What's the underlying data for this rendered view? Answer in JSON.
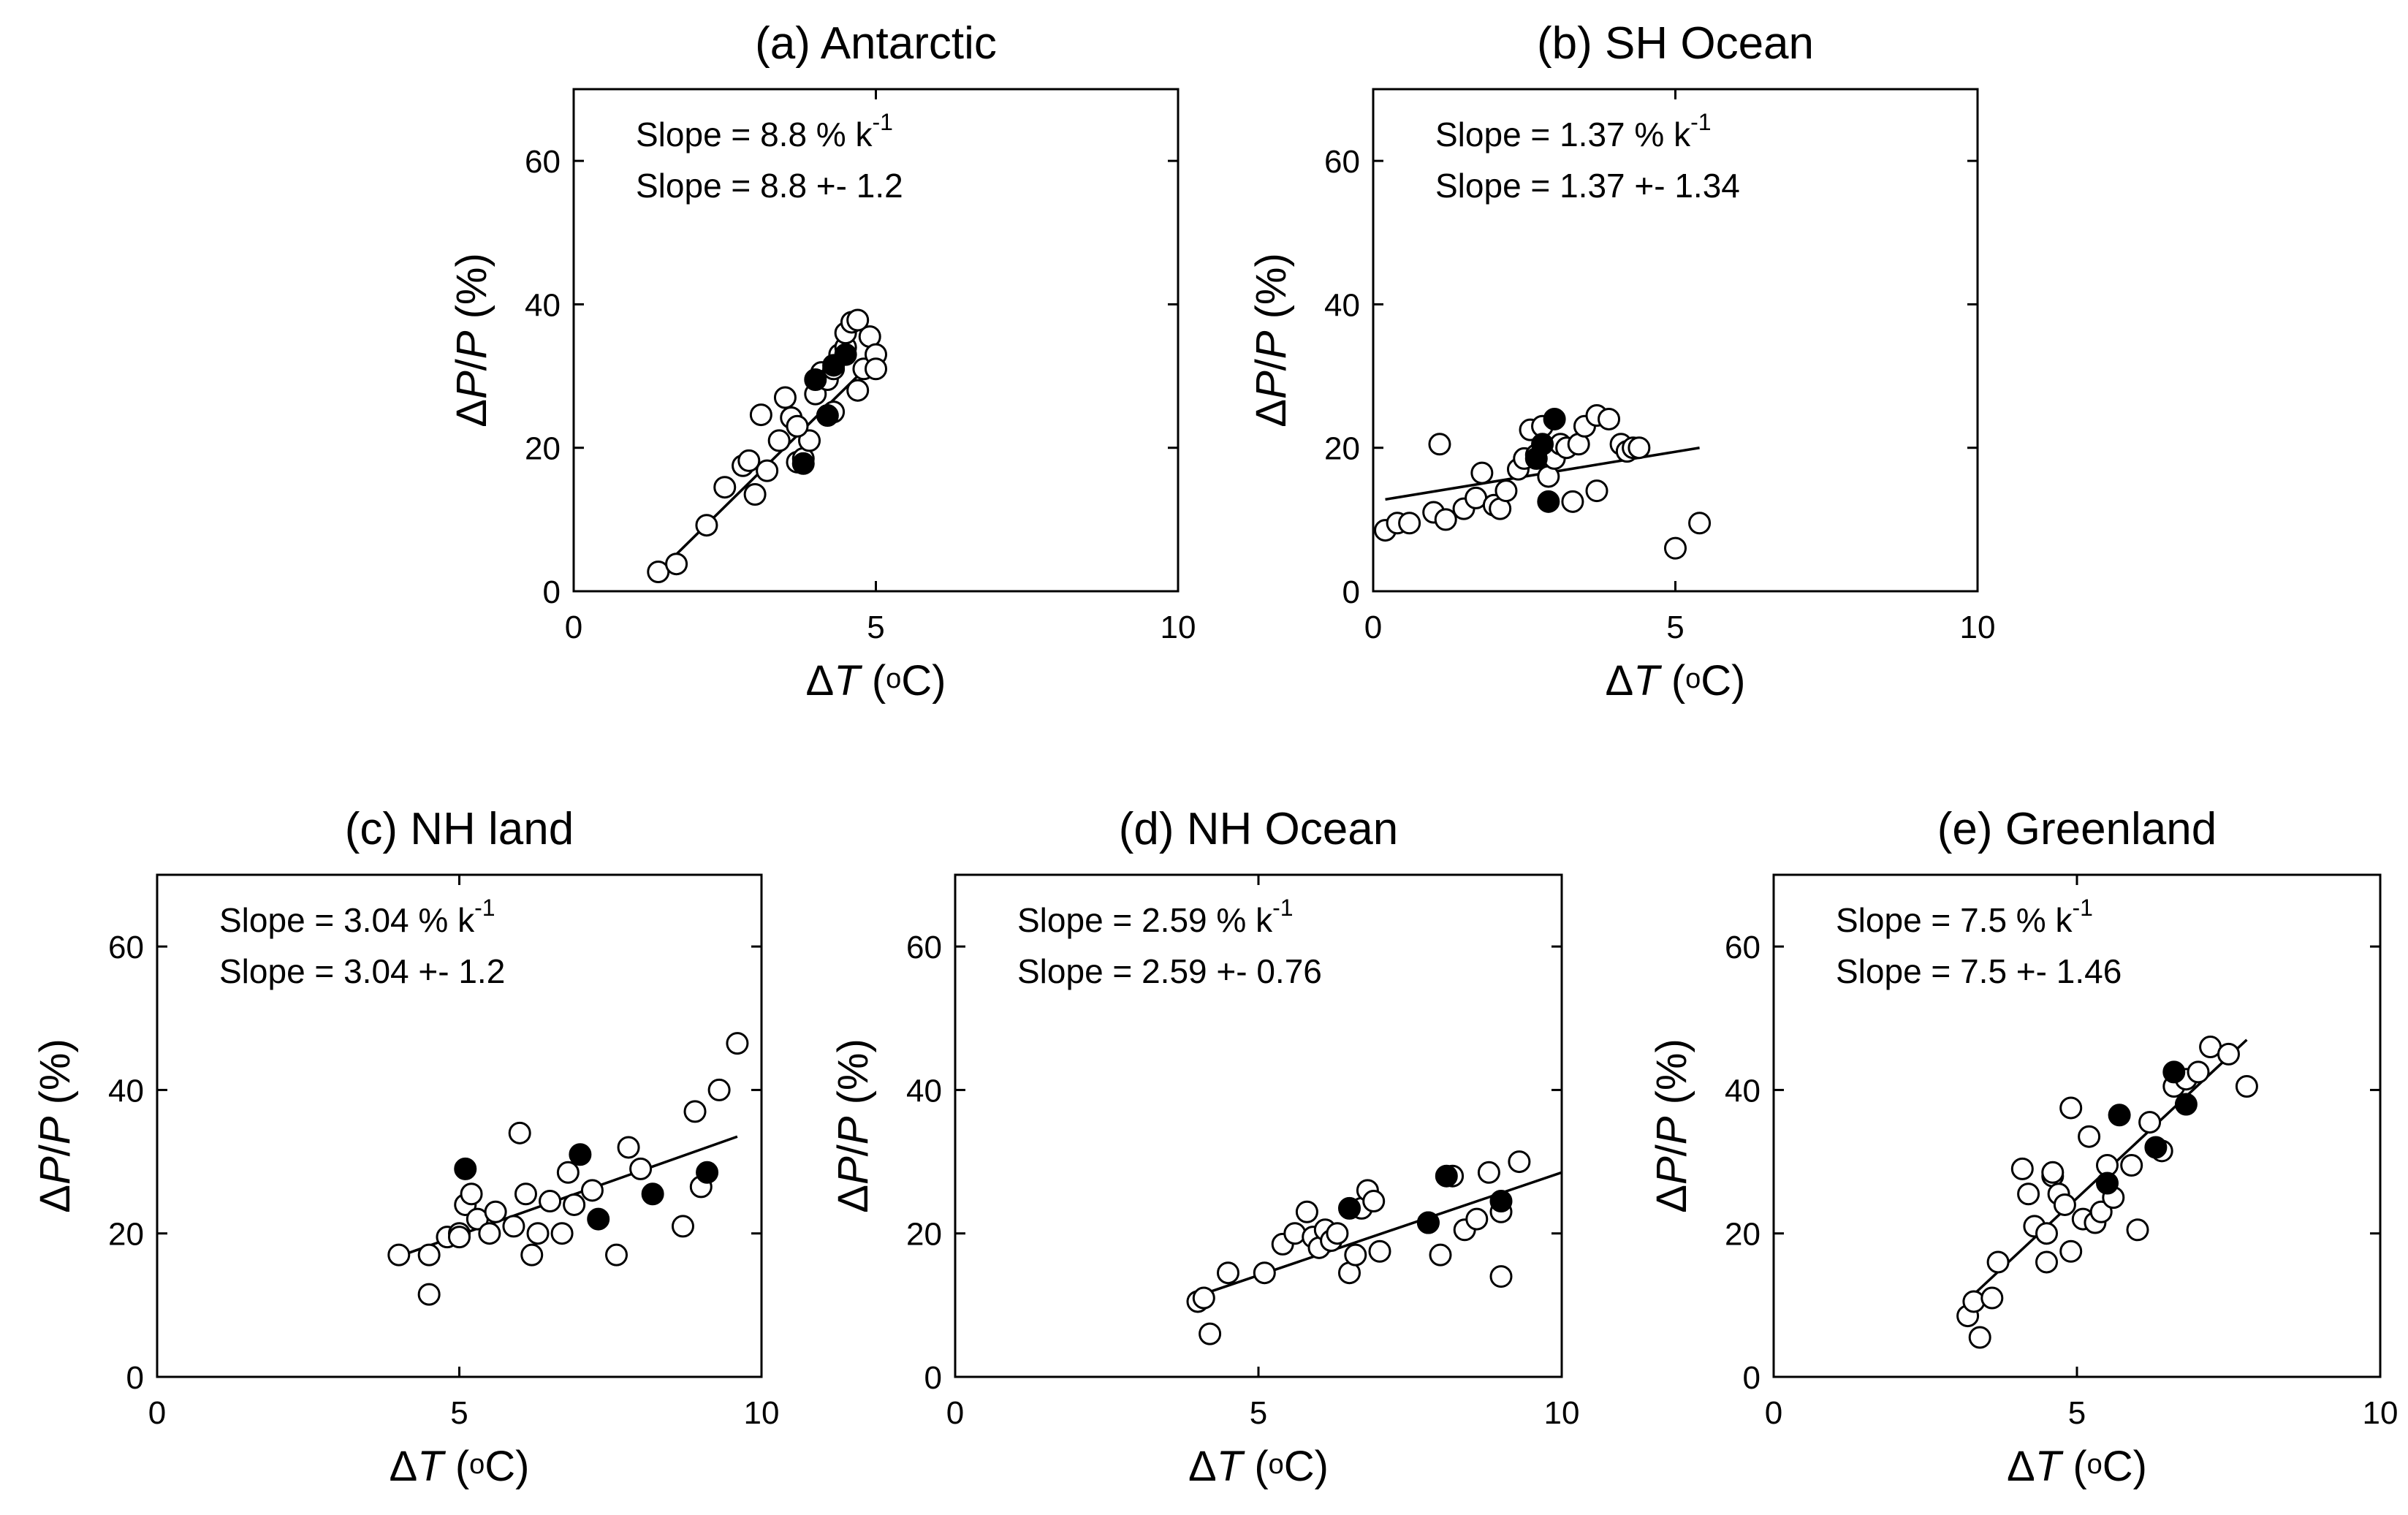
{
  "figure_title": "",
  "chart_data": [
    {
      "id": "a",
      "type": "scatter",
      "title": "(a) Antarctic",
      "xlabel_symbol": "ΔT",
      "xlabel_unit": "(oC)",
      "ylabel": "ΔP/P (%)",
      "xlim": [
        0,
        10
      ],
      "ylim": [
        0,
        70
      ],
      "xticks": [
        0,
        5,
        10
      ],
      "yticks": [
        0,
        20,
        40,
        60
      ],
      "annotation_line1": "Slope =  8.8 % k-1",
      "annotation_line2": "Slope =  8.8 +- 1.2",
      "fit_line": {
        "x": [
          1.5,
          5.0
        ],
        "y": [
          3.5,
          32.5
        ]
      },
      "open_points": [
        [
          1.4,
          2.7
        ],
        [
          1.7,
          3.8
        ],
        [
          2.2,
          9.2
        ],
        [
          2.5,
          14.5
        ],
        [
          2.8,
          17.5
        ],
        [
          2.9,
          18.2
        ],
        [
          3.0,
          13.5
        ],
        [
          3.1,
          24.6
        ],
        [
          3.2,
          16.8
        ],
        [
          3.4,
          21.0
        ],
        [
          3.5,
          27.0
        ],
        [
          3.6,
          24.2
        ],
        [
          3.7,
          18.0
        ],
        [
          3.8,
          18.5
        ],
        [
          3.9,
          21.0
        ],
        [
          4.0,
          27.5
        ],
        [
          4.1,
          30.5
        ],
        [
          4.2,
          29.5
        ],
        [
          4.3,
          31.0
        ],
        [
          4.4,
          33.0
        ],
        [
          4.5,
          34.0
        ],
        [
          4.5,
          36.0
        ],
        [
          4.6,
          37.5
        ],
        [
          4.7,
          37.8
        ],
        [
          4.7,
          28.0
        ],
        [
          4.8,
          31.0
        ],
        [
          4.9,
          35.5
        ],
        [
          5.0,
          33.0
        ],
        [
          5.0,
          31.0
        ],
        [
          4.3,
          25.0
        ],
        [
          3.7,
          23.0
        ]
      ],
      "filled_points": [
        [
          3.8,
          17.8
        ],
        [
          4.0,
          29.5
        ],
        [
          4.2,
          24.5
        ],
        [
          4.3,
          31.5
        ],
        [
          4.5,
          33.0
        ]
      ]
    },
    {
      "id": "b",
      "type": "scatter",
      "title": "(b) SH Ocean",
      "xlabel_symbol": "ΔT",
      "xlabel_unit": "(oC)",
      "ylabel": "ΔP/P (%)",
      "xlim": [
        0,
        10
      ],
      "ylim": [
        0,
        70
      ],
      "xticks": [
        0,
        5,
        10
      ],
      "yticks": [
        0,
        20,
        40,
        60
      ],
      "annotation_line1": "Slope =  1.37 % k-1",
      "annotation_line2": "Slope =  1.37 +- 1.34",
      "fit_line": {
        "x": [
          0.2,
          5.4
        ],
        "y": [
          12.8,
          20.0
        ]
      },
      "open_points": [
        [
          0.2,
          8.5
        ],
        [
          0.4,
          9.5
        ],
        [
          0.6,
          9.5
        ],
        [
          1.0,
          11.0
        ],
        [
          1.1,
          20.5
        ],
        [
          1.2,
          10.0
        ],
        [
          1.5,
          11.5
        ],
        [
          1.7,
          13.0
        ],
        [
          1.8,
          16.5
        ],
        [
          2.0,
          12.0
        ],
        [
          2.1,
          11.5
        ],
        [
          2.2,
          14.0
        ],
        [
          2.4,
          17.0
        ],
        [
          2.5,
          18.5
        ],
        [
          2.6,
          22.5
        ],
        [
          2.7,
          19.0
        ],
        [
          2.8,
          23.0
        ],
        [
          2.9,
          16.0
        ],
        [
          3.0,
          18.5
        ],
        [
          3.1,
          20.5
        ],
        [
          3.2,
          20.0
        ],
        [
          3.3,
          12.5
        ],
        [
          3.4,
          20.5
        ],
        [
          3.5,
          23.0
        ],
        [
          3.7,
          24.5
        ],
        [
          3.7,
          14.0
        ],
        [
          3.9,
          24.0
        ],
        [
          4.1,
          20.5
        ],
        [
          4.2,
          19.5
        ],
        [
          4.3,
          20.0
        ],
        [
          4.4,
          20.0
        ],
        [
          5.0,
          6.0
        ],
        [
          5.4,
          9.5
        ]
      ],
      "filled_points": [
        [
          2.7,
          18.5
        ],
        [
          2.8,
          20.5
        ],
        [
          2.9,
          12.5
        ],
        [
          3.0,
          24.0
        ]
      ]
    },
    {
      "id": "c",
      "type": "scatter",
      "title": "(c) NH land",
      "xlabel_symbol": "ΔT",
      "xlabel_unit": "(oC)",
      "ylabel": "ΔP/P (%)",
      "xlim": [
        0,
        10
      ],
      "ylim": [
        0,
        70
      ],
      "xticks": [
        0,
        5,
        10
      ],
      "yticks": [
        0,
        20,
        40,
        60
      ],
      "annotation_line1": "Slope =  3.04 % k-1",
      "annotation_line2": "Slope =  3.04 +- 1.2",
      "fit_line": {
        "x": [
          3.9,
          9.6
        ],
        "y": [
          16.5,
          33.5
        ]
      },
      "open_points": [
        [
          4.0,
          17.0
        ],
        [
          4.5,
          11.5
        ],
        [
          4.5,
          17.0
        ],
        [
          4.8,
          19.5
        ],
        [
          5.0,
          20.0
        ],
        [
          5.1,
          24.0
        ],
        [
          5.2,
          25.5
        ],
        [
          5.3,
          22.0
        ],
        [
          5.5,
          20.0
        ],
        [
          5.6,
          23.0
        ],
        [
          5.9,
          21.0
        ],
        [
          6.0,
          34.0
        ],
        [
          6.1,
          25.5
        ],
        [
          6.2,
          17.0
        ],
        [
          6.3,
          20.0
        ],
        [
          6.5,
          24.5
        ],
        [
          6.7,
          20.0
        ],
        [
          6.8,
          28.5
        ],
        [
          6.9,
          24.0
        ],
        [
          7.2,
          26.0
        ],
        [
          7.6,
          17.0
        ],
        [
          7.8,
          32.0
        ],
        [
          8.0,
          29.0
        ],
        [
          8.7,
          21.0
        ],
        [
          8.9,
          37.0
        ],
        [
          9.0,
          26.5
        ],
        [
          9.3,
          40.0
        ],
        [
          9.6,
          46.5
        ],
        [
          5.0,
          19.5
        ]
      ],
      "filled_points": [
        [
          5.1,
          29.0
        ],
        [
          7.0,
          31.0
        ],
        [
          7.3,
          22.0
        ],
        [
          8.2,
          25.5
        ],
        [
          9.1,
          28.5
        ]
      ]
    },
    {
      "id": "d",
      "type": "scatter",
      "title": "(d) NH Ocean",
      "xlabel_symbol": "ΔT",
      "xlabel_unit": "(oC)",
      "ylabel": "ΔP/P (%)",
      "xlim": [
        0,
        10
      ],
      "ylim": [
        0,
        70
      ],
      "xticks": [
        0,
        5,
        10
      ],
      "yticks": [
        0,
        20,
        40,
        60
      ],
      "annotation_line1": "Slope =  2.59 % k-1",
      "annotation_line2": "Slope =  2.59 +- 0.76",
      "fit_line": {
        "x": [
          3.9,
          10.0
        ],
        "y": [
          11.0,
          28.5
        ]
      },
      "open_points": [
        [
          4.0,
          10.5
        ],
        [
          4.2,
          6.0
        ],
        [
          4.1,
          11.0
        ],
        [
          4.5,
          14.5
        ],
        [
          5.1,
          14.5
        ],
        [
          5.4,
          18.5
        ],
        [
          5.6,
          20.0
        ],
        [
          5.8,
          23.0
        ],
        [
          5.9,
          19.5
        ],
        [
          6.0,
          18.0
        ],
        [
          6.1,
          20.5
        ],
        [
          6.2,
          19.0
        ],
        [
          6.3,
          20.0
        ],
        [
          6.5,
          14.5
        ],
        [
          6.6,
          17.0
        ],
        [
          6.7,
          23.5
        ],
        [
          6.8,
          26.0
        ],
        [
          6.9,
          24.5
        ],
        [
          7.0,
          17.5
        ],
        [
          7.8,
          21.5
        ],
        [
          8.0,
          17.0
        ],
        [
          8.2,
          28.0
        ],
        [
          8.4,
          20.5
        ],
        [
          8.6,
          22.0
        ],
        [
          8.8,
          28.5
        ],
        [
          9.0,
          14.0
        ],
        [
          9.0,
          23.0
        ],
        [
          9.3,
          30.0
        ]
      ],
      "filled_points": [
        [
          6.5,
          23.5
        ],
        [
          7.8,
          21.5
        ],
        [
          8.1,
          28.0
        ],
        [
          9.0,
          24.5
        ]
      ]
    },
    {
      "id": "e",
      "type": "scatter",
      "title": "(e) Greenland",
      "xlabel_symbol": "ΔT",
      "xlabel_unit": "(oC)",
      "ylabel": "ΔP/P (%)",
      "xlim": [
        0,
        10
      ],
      "ylim": [
        0,
        70
      ],
      "xticks": [
        0,
        5,
        10
      ],
      "yticks": [
        0,
        20,
        40,
        60
      ],
      "annotation_line1": "Slope =  7.5 % k-1",
      "annotation_line2": "Slope =  7.5 +- 1.46",
      "fit_line": {
        "x": [
          3.3,
          7.8
        ],
        "y": [
          11.5,
          47.0
        ]
      },
      "open_points": [
        [
          3.2,
          8.5
        ],
        [
          3.3,
          10.5
        ],
        [
          3.4,
          5.5
        ],
        [
          3.6,
          11.0
        ],
        [
          3.7,
          16.0
        ],
        [
          4.1,
          29.0
        ],
        [
          4.2,
          25.5
        ],
        [
          4.3,
          21.0
        ],
        [
          4.5,
          20.0
        ],
        [
          4.5,
          16.0
        ],
        [
          4.6,
          28.0
        ],
        [
          4.7,
          25.5
        ],
        [
          4.8,
          24.0
        ],
        [
          4.9,
          17.5
        ],
        [
          4.9,
          37.5
        ],
        [
          5.1,
          22.0
        ],
        [
          5.2,
          33.5
        ],
        [
          5.3,
          21.5
        ],
        [
          5.4,
          23.0
        ],
        [
          5.5,
          29.5
        ],
        [
          5.6,
          25.0
        ],
        [
          5.9,
          29.5
        ],
        [
          6.0,
          20.5
        ],
        [
          6.2,
          35.5
        ],
        [
          6.4,
          31.5
        ],
        [
          6.6,
          40.5
        ],
        [
          6.8,
          41.5
        ],
        [
          7.0,
          42.5
        ],
        [
          7.2,
          46.0
        ],
        [
          7.5,
          45.0
        ],
        [
          7.8,
          40.5
        ],
        [
          4.6,
          28.5
        ]
      ],
      "filled_points": [
        [
          5.5,
          27.0
        ],
        [
          5.7,
          36.5
        ],
        [
          6.3,
          32.0
        ],
        [
          6.6,
          42.5
        ],
        [
          6.8,
          38.0
        ]
      ]
    }
  ]
}
